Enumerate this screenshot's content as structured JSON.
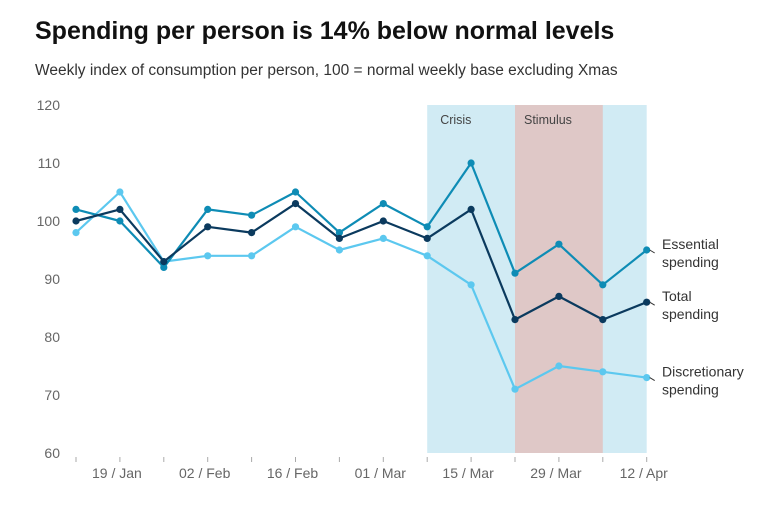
{
  "title": "Spending per person is 14% below normal levels",
  "subtitle": "Weekly index of consumption per person, 100 = normal weekly base excluding Xmas",
  "colors": {
    "essential": "#0e8cb5",
    "total": "#0b3a5e",
    "discretionary": "#5cc8ef",
    "crisis_band": "#d1ebf4",
    "stimulus_band": "#dfc8c7"
  },
  "chart_data": {
    "type": "line",
    "title": "Spending per person is 14% below normal levels",
    "subtitle": "Weekly index of consumption per person, 100 = normal weekly base excluding Xmas",
    "xlabel": "",
    "ylabel": "",
    "ylim": [
      60,
      120
    ],
    "yticks": [
      60,
      70,
      80,
      90,
      100,
      110,
      120
    ],
    "xtick_labels": [
      "19 / Jan",
      "02 / Feb",
      "16 / Feb",
      "01 / Mar",
      "15 / Mar",
      "29 / Mar",
      "12 / Apr"
    ],
    "week_count": 14,
    "grid": false,
    "bands": [
      {
        "label": "Crisis",
        "from_week": 8,
        "to_week": 13
      },
      {
        "label": "Stimulus",
        "from_week": 10,
        "to_week": 12
      }
    ],
    "series": [
      {
        "name": "Essential spending",
        "label_lines": [
          "Essential",
          "spending"
        ],
        "color_key": "essential",
        "values": [
          102,
          100,
          92,
          102,
          101,
          105,
          98,
          103,
          99,
          110,
          91,
          96,
          89,
          95
        ]
      },
      {
        "name": "Total spending",
        "label_lines": [
          "Total",
          "spending"
        ],
        "color_key": "total",
        "values": [
          100,
          102,
          93,
          99,
          98,
          103,
          97,
          100,
          97,
          102,
          83,
          87,
          83,
          86
        ]
      },
      {
        "name": "Discretionary spending",
        "label_lines": [
          "Discretionary",
          "spending"
        ],
        "color_key": "discretionary",
        "values": [
          98,
          105,
          93,
          94,
          94,
          99,
          95,
          97,
          94,
          89,
          71,
          75,
          74,
          73
        ]
      }
    ]
  }
}
